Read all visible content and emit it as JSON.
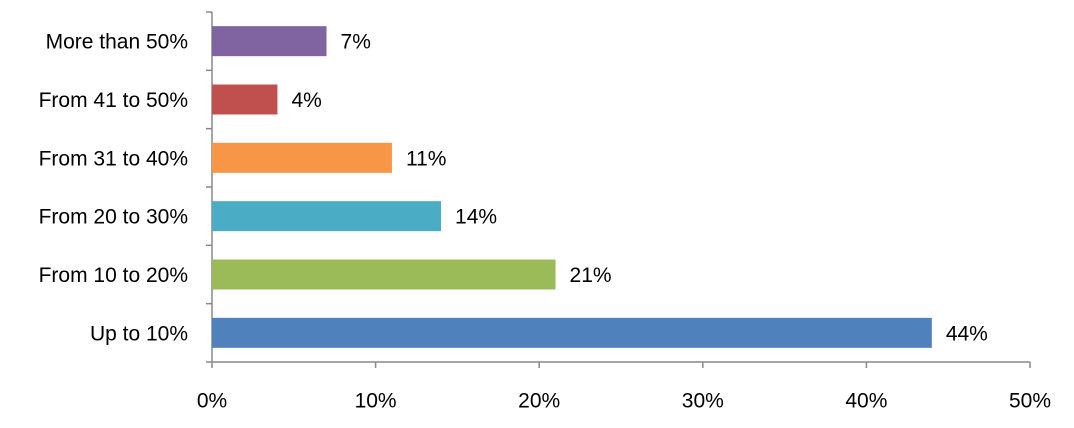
{
  "chart_data": {
    "type": "hbar",
    "categories": [
      "More than 50%",
      "From 41 to 50%",
      "From 31 to 40%",
      "From 20 to 30%",
      "From 10 to 20%",
      "Up to 10%"
    ],
    "values": [
      7,
      4,
      11,
      14,
      21,
      44
    ],
    "value_labels": [
      "7%",
      "4%",
      "11%",
      "14%",
      "21%",
      "44%"
    ],
    "colors": [
      "#8064a2",
      "#c0504d",
      "#f79646",
      "#4bacc6",
      "#9bbb59",
      "#4f81bd"
    ],
    "xlim": [
      0,
      50
    ],
    "xticks": [
      {
        "value": 0,
        "label": "0%"
      },
      {
        "value": 10,
        "label": "10%"
      },
      {
        "value": 20,
        "label": "20%"
      },
      {
        "value": 30,
        "label": "30%"
      },
      {
        "value": 40,
        "label": "40%"
      },
      {
        "value": 50,
        "label": "50%"
      }
    ],
    "grid": false
  }
}
